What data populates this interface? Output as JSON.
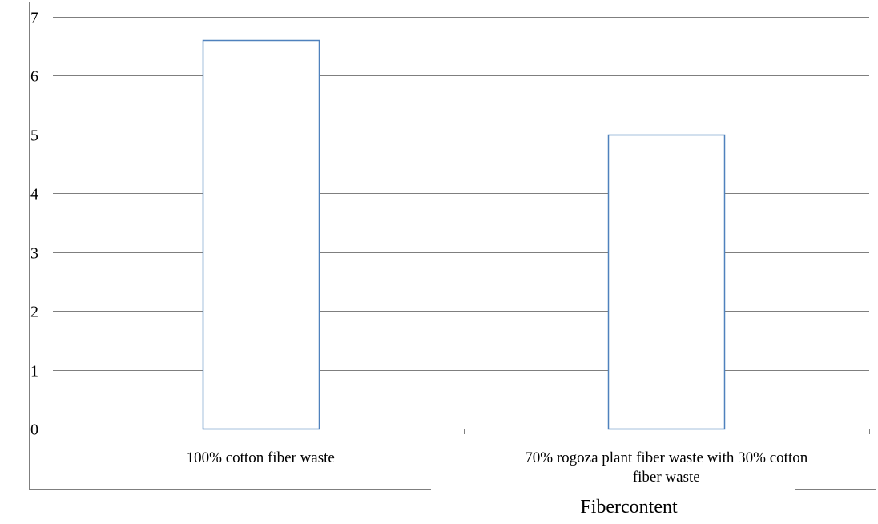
{
  "chart_data": {
    "type": "bar",
    "categories": [
      [
        "100% cotton fiber waste"
      ],
      [
        "70% rogoza plant fiber waste with 30% cotton",
        "fiber waste"
      ]
    ],
    "values": [
      6.6,
      5.0
    ],
    "ylim": [
      0,
      7
    ],
    "yticks": [
      "0",
      "1",
      "2",
      "3",
      "4",
      "5",
      "6",
      "7"
    ],
    "xlabel": "Fibercontent",
    "ylabel": "",
    "title": "",
    "grid": true,
    "colors": {
      "bar_stroke": "#4f81bd",
      "bar_fill": "#ffffff",
      "grid": "#7f7f7f",
      "axis": "#7f7f7f",
      "frame": "#7f7f7f"
    }
  }
}
